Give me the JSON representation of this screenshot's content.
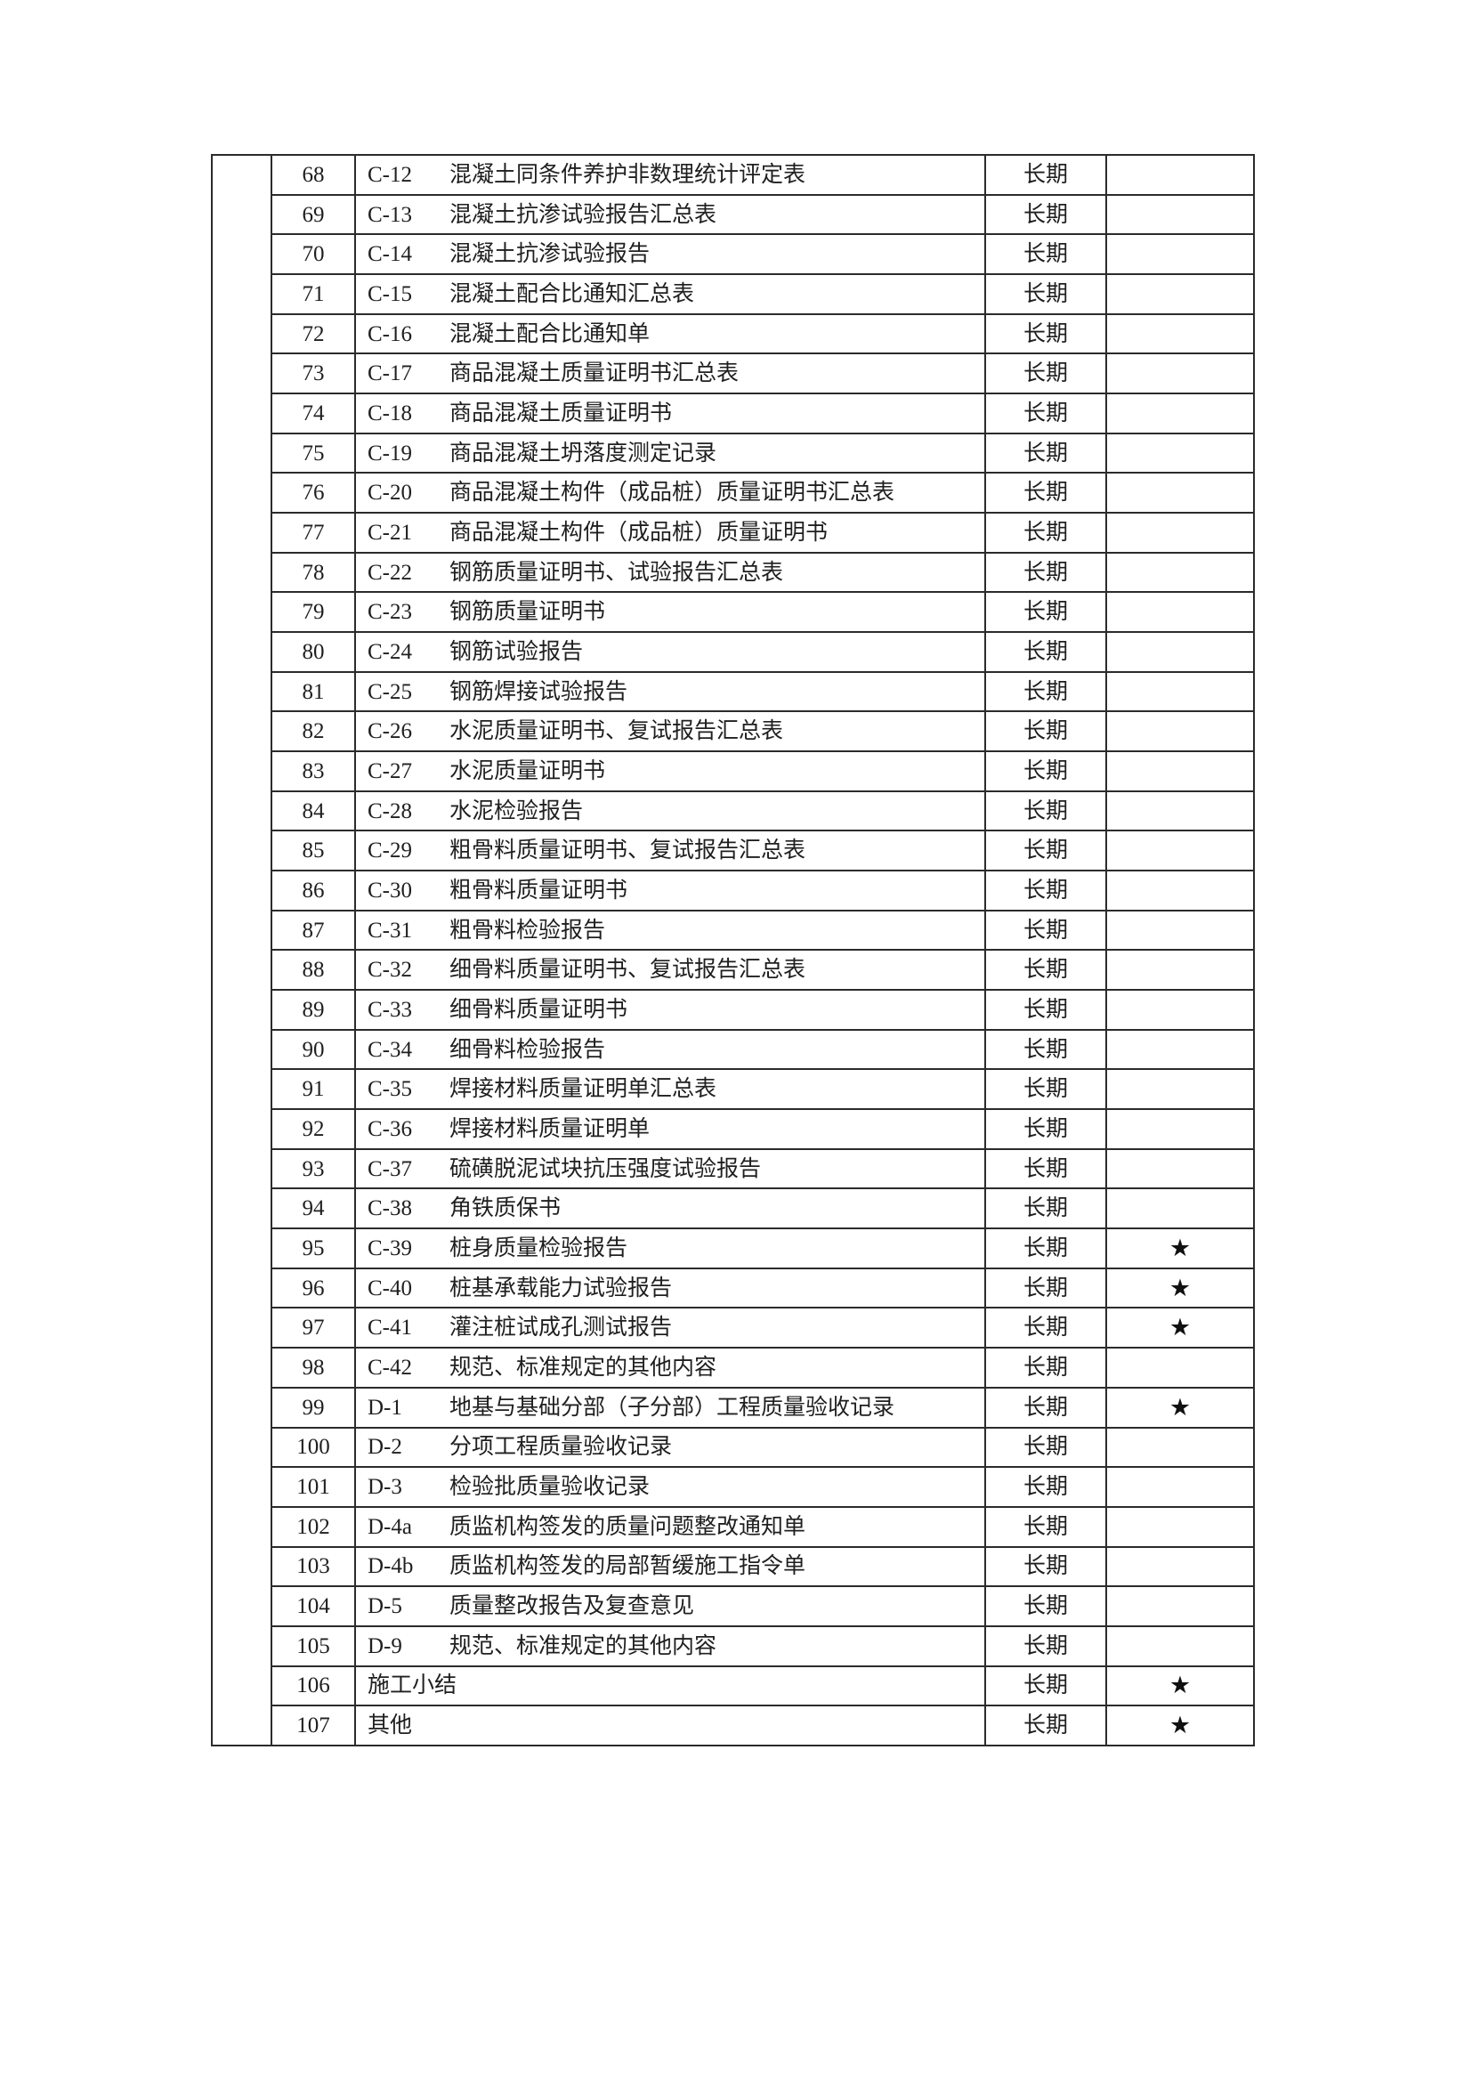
{
  "colors": {
    "paper": "#ffffff",
    "table_line": "#2b2b2b",
    "text": "#1f1f1f"
  },
  "document": {
    "table": {
      "star_symbol": "★",
      "retention_label": "长期",
      "rows": [
        {
          "no": "68",
          "code": "C-12",
          "title": "混凝土同条件养护非数理统计评定表",
          "retention": "长期",
          "star": ""
        },
        {
          "no": "69",
          "code": "C-13",
          "title": "混凝土抗渗试验报告汇总表",
          "retention": "长期",
          "star": ""
        },
        {
          "no": "70",
          "code": "C-14",
          "title": "混凝土抗渗试验报告",
          "retention": "长期",
          "star": ""
        },
        {
          "no": "71",
          "code": "C-15",
          "title": "混凝土配合比通知汇总表",
          "retention": "长期",
          "star": ""
        },
        {
          "no": "72",
          "code": "C-16",
          "title": "混凝土配合比通知单",
          "retention": "长期",
          "star": ""
        },
        {
          "no": "73",
          "code": "C-17",
          "title": "商品混凝土质量证明书汇总表",
          "retention": "长期",
          "star": ""
        },
        {
          "no": "74",
          "code": "C-18",
          "title": "商品混凝土质量证明书",
          "retention": "长期",
          "star": ""
        },
        {
          "no": "75",
          "code": "C-19",
          "title": "商品混凝土坍落度测定记录",
          "retention": "长期",
          "star": ""
        },
        {
          "no": "76",
          "code": "C-20",
          "title": "商品混凝土构件（成品桩）质量证明书汇总表",
          "retention": "长期",
          "star": ""
        },
        {
          "no": "77",
          "code": "C-21",
          "title": "商品混凝土构件（成品桩）质量证明书",
          "retention": "长期",
          "star": ""
        },
        {
          "no": "78",
          "code": "C-22",
          "title": "钢筋质量证明书、试验报告汇总表",
          "retention": "长期",
          "star": ""
        },
        {
          "no": "79",
          "code": "C-23",
          "title": "钢筋质量证明书",
          "retention": "长期",
          "star": ""
        },
        {
          "no": "80",
          "code": "C-24",
          "title": "钢筋试验报告",
          "retention": "长期",
          "star": ""
        },
        {
          "no": "81",
          "code": "C-25",
          "title": "钢筋焊接试验报告",
          "retention": "长期",
          "star": ""
        },
        {
          "no": "82",
          "code": "C-26",
          "title": "水泥质量证明书、复试报告汇总表",
          "retention": "长期",
          "star": ""
        },
        {
          "no": "83",
          "code": "C-27",
          "title": "水泥质量证明书",
          "retention": "长期",
          "star": ""
        },
        {
          "no": "84",
          "code": "C-28",
          "title": "水泥检验报告",
          "retention": "长期",
          "star": ""
        },
        {
          "no": "85",
          "code": "C-29",
          "title": "粗骨料质量证明书、复试报告汇总表",
          "retention": "长期",
          "star": ""
        },
        {
          "no": "86",
          "code": "C-30",
          "title": "粗骨料质量证明书",
          "retention": "长期",
          "star": ""
        },
        {
          "no": "87",
          "code": "C-31",
          "title": "粗骨料检验报告",
          "retention": "长期",
          "star": ""
        },
        {
          "no": "88",
          "code": "C-32",
          "title": "细骨料质量证明书、复试报告汇总表",
          "retention": "长期",
          "star": ""
        },
        {
          "no": "89",
          "code": "C-33",
          "title": "细骨料质量证明书",
          "retention": "长期",
          "star": ""
        },
        {
          "no": "90",
          "code": "C-34",
          "title": "细骨料检验报告",
          "retention": "长期",
          "star": ""
        },
        {
          "no": "91",
          "code": "C-35",
          "title": "焊接材料质量证明单汇总表",
          "retention": "长期",
          "star": ""
        },
        {
          "no": "92",
          "code": "C-36",
          "title": "焊接材料质量证明单",
          "retention": "长期",
          "star": ""
        },
        {
          "no": "93",
          "code": "C-37",
          "title": "硫磺脱泥试块抗压强度试验报告",
          "retention": "长期",
          "star": ""
        },
        {
          "no": "94",
          "code": "C-38",
          "title": "角铁质保书",
          "retention": "长期",
          "star": ""
        },
        {
          "no": "95",
          "code": "C-39",
          "title": "桩身质量检验报告",
          "retention": "长期",
          "star": "★"
        },
        {
          "no": "96",
          "code": "C-40",
          "title": "桩基承载能力试验报告",
          "retention": "长期",
          "star": "★"
        },
        {
          "no": "97",
          "code": "C-41",
          "title": "灌注桩试成孔测试报告",
          "retention": "长期",
          "star": "★"
        },
        {
          "no": "98",
          "code": "C-42",
          "title": "规范、标准规定的其他内容",
          "retention": "长期",
          "star": ""
        },
        {
          "no": "99",
          "code": "D-1",
          "title": "地基与基础分部（子分部）工程质量验收记录",
          "retention": "长期",
          "star": "★"
        },
        {
          "no": "100",
          "code": "D-2",
          "title": "分项工程质量验收记录",
          "retention": "长期",
          "star": ""
        },
        {
          "no": "101",
          "code": "D-3",
          "title": "检验批质量验收记录",
          "retention": "长期",
          "star": ""
        },
        {
          "no": "102",
          "code": "D-4a",
          "title": "质监机构签发的质量问题整改通知单",
          "retention": "长期",
          "star": ""
        },
        {
          "no": "103",
          "code": "D-4b",
          "title": "质监机构签发的局部暂缓施工指令单",
          "retention": "长期",
          "star": ""
        },
        {
          "no": "104",
          "code": "D-5",
          "title": "质量整改报告及复查意见",
          "retention": "长期",
          "star": ""
        },
        {
          "no": "105",
          "code": "D-9",
          "title": "规范、标准规定的其他内容",
          "retention": "长期",
          "star": ""
        },
        {
          "no": "106",
          "code": "",
          "title": "施工小结",
          "retention": "长期",
          "star": "★"
        },
        {
          "no": "107",
          "code": "",
          "title": "其他",
          "retention": "长期",
          "star": "★"
        }
      ]
    }
  }
}
